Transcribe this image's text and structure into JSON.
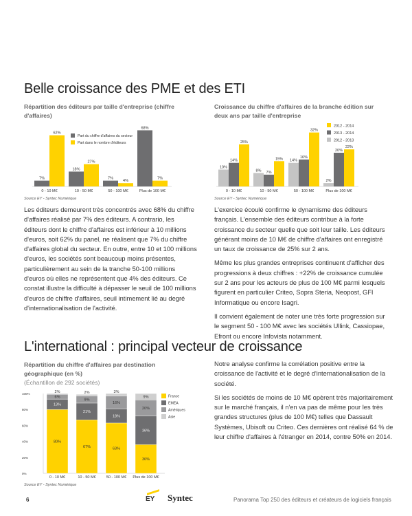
{
  "section1": {
    "title": "Belle croissance des PME et des ETI",
    "left_paragraph": "Les éditeurs demeurent très concentrés avec 68% du chiffre d'affaires réalisé par 7% des éditeurs. A contrario, les éditeurs dont le chiffre d'affaires est inférieur à 10 millions d'euros, soit 62% du panel, ne réalisent que 7% du chiffre d'affaires global du secteur. En outre, entre 10 et 100 millions d'euros, les sociétés sont beaucoup moins présentes, particulièrement au sein de la tranche 50-100 millions d'euros où elles ne représentent que 4% des éditeurs. Ce constat illustre la difficulté à dépasser le seuil de 100 millions d'euros de chiffre d'affaires, seuil intimement lié au degré d'internationalisation de l'activité.",
    "right_paragraphs": [
      "L'exercice écoulé confirme le dynamisme des éditeurs français. L'ensemble des éditeurs contribue à la forte croissance du secteur quelle que soit leur taille. Les éditeurs générant moins de 10 M€ de chiffre d'affaires ont enregistré un taux de croissance de 25% sur 2 ans.",
      "Même les plus grandes entreprises continuent d'afficher des progressions à deux chiffres : +22% de croissance cumulée sur 2 ans pour les acteurs de plus de 100 M€ parmi lesquels figurent en particulier Criteo, Sopra Steria, Neopost, GFI Informatique ou encore Isagri.",
      "Il convient également de noter une très forte progression sur le segment 50 - 100 M€ avec les sociétés Ullink, Cassiopae, Efront ou encore Infovista notamment."
    ]
  },
  "section2": {
    "title": "L'international : principal vecteur de croissance",
    "right_paragraphs": [
      "Notre analyse confirme la corrélation positive entre la croissance de l'activité et le degré d'internationalisation de la société.",
      "Si les sociétés de moins de 10 M€ opèrent très majoritairement sur le marché français, il n'en va pas de même pour les très grandes structures (plus de 100 M€) telles que Dassault Systèmes, Ubisoft ou Criteo. Ces dernières ont réalisé 64 % de leur chiffre d'affaires à l'étranger en 2014, contre 50% en 2014."
    ]
  },
  "chart_data": [
    {
      "type": "bar",
      "title": "Répartition des éditeurs par taille d'entreprise (chiffre d'affaires)",
      "source": "Source EY - Syntec Numérique",
      "categories": [
        "0 - 10 M€",
        "10 - 50 M€",
        "50 - 100 M€",
        "Plus de 100 M€"
      ],
      "series": [
        {
          "name": "Part du chiffre d'affaires du secteur",
          "values": [
            7,
            18,
            7,
            68
          ],
          "color": "#6e6e70"
        },
        {
          "name": "Part dans le nombre d'éditeurs",
          "values": [
            62,
            27,
            4,
            7
          ],
          "color": "#ffd200"
        }
      ],
      "value_suffix": "%",
      "legend": "top-center"
    },
    {
      "type": "bar",
      "title": "Croissance du chiffre d'affaires de la branche édition sur deux ans par taille d'entreprise",
      "source": "Source EY - Syntec Numérique",
      "categories": [
        "0 - 10 M€",
        "10 - 50 M€",
        "50 - 100 M€",
        "Plus de 100 M€"
      ],
      "series": [
        {
          "name": "2012 - 2013",
          "values": [
            10,
            8,
            14,
            2
          ],
          "color": "#c4c4c4"
        },
        {
          "name": "2013 - 2014",
          "values": [
            14,
            7,
            16,
            20
          ],
          "color": "#6e6e70"
        },
        {
          "name": "2012 - 2014",
          "values": [
            25,
            15,
            32,
            22
          ],
          "color": "#ffd200"
        }
      ],
      "legend_order": [
        "2012 - 2014",
        "2013 - 2014",
        "2012 - 2013"
      ],
      "value_suffix": "%",
      "legend": "top-right"
    },
    {
      "type": "bar",
      "stacked": true,
      "title": "Répartition du chiffre d'affaires par destination géographique (en %)",
      "subtitle": "(Échantillon de 292 sociétés)",
      "source": "Source EY - Syntec Numérique",
      "categories": [
        "0 - 10 M€",
        "10 - 50 M€",
        "50 - 100 M€",
        "Plus de 100 M€"
      ],
      "series": [
        {
          "name": "France",
          "values": [
            80,
            67,
            63,
            36
          ],
          "color": "#ffd200"
        },
        {
          "name": "EMEA",
          "values": [
            13,
            21,
            18,
            36
          ],
          "color": "#6e6e70"
        },
        {
          "name": "Amériques",
          "values": [
            6,
            9,
            16,
            20
          ],
          "color": "#9a9a9c"
        },
        {
          "name": "Asie",
          "values": [
            2,
            2,
            3,
            9
          ],
          "color": "#cfcfcf"
        }
      ],
      "yticks": [
        "0%",
        "20%",
        "40%",
        "60%",
        "80%",
        "100%"
      ],
      "ylim": [
        0,
        100
      ],
      "value_suffix": "%",
      "legend": "right"
    }
  ],
  "footer": {
    "page_number": "6",
    "logos": [
      "EY",
      "Syntec numérique"
    ],
    "publication": "Panorama Top 250 des éditeurs et créateurs de logiciels français"
  }
}
